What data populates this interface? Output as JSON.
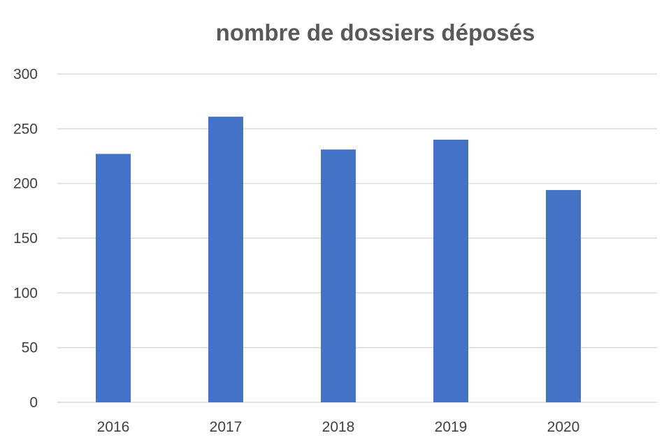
{
  "chart_data": {
    "type": "bar",
    "title": "nombre de dossiers déposés",
    "xlabel": "",
    "ylabel": "",
    "categories": [
      "2016",
      "2017",
      "2018",
      "2019",
      "2020"
    ],
    "values": [
      227,
      261,
      231,
      240,
      194
    ],
    "ylim": [
      0,
      300
    ],
    "yticks": [
      0,
      50,
      100,
      150,
      200,
      250,
      300
    ],
    "grid": true,
    "legend": "none",
    "bar_color": "#4472C4"
  }
}
